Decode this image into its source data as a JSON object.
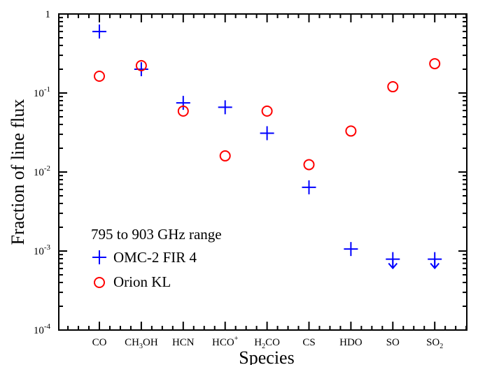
{
  "chart_data": {
    "type": "scatter",
    "xlabel": "Species",
    "ylabel": "Fraction of line flux",
    "yscale": "log",
    "ylim": [
      0.0001,
      1
    ],
    "categories": [
      {
        "label": "CO",
        "base": "CO",
        "sub": "",
        "sup": ""
      },
      {
        "label": "CH3OH",
        "base": "CH",
        "sub": "3",
        "tail": "OH",
        "sup": ""
      },
      {
        "label": "HCN",
        "base": "HCN",
        "sub": "",
        "sup": ""
      },
      {
        "label": "HCO+",
        "base": "HCO",
        "sub": "",
        "sup": "+"
      },
      {
        "label": "H2CO",
        "base": "H",
        "sub": "2",
        "tail": "CO",
        "sup": ""
      },
      {
        "label": "CS",
        "base": "CS",
        "sub": "",
        "sup": ""
      },
      {
        "label": "HDO",
        "base": "HDO",
        "sub": "",
        "sup": ""
      },
      {
        "label": "SO",
        "base": "SO",
        "sub": "",
        "sup": ""
      },
      {
        "label": "SO2",
        "base": "SO",
        "sub": "2",
        "sup": ""
      }
    ],
    "yticks": [
      {
        "value": 1,
        "mant": "1",
        "exp": ""
      },
      {
        "value": 0.1,
        "mant": "10",
        "exp": "-1"
      },
      {
        "value": 0.01,
        "mant": "10",
        "exp": "-2"
      },
      {
        "value": 0.001,
        "mant": "10",
        "exp": "-3"
      },
      {
        "value": 0.0001,
        "mant": "10",
        "exp": "-4"
      }
    ],
    "legend_title": "795 to 903 GHz range",
    "series": [
      {
        "name": "OMC-2 FIR 4",
        "marker": "plus",
        "color": "#0000ff",
        "values": [
          0.6,
          0.2,
          0.075,
          0.066,
          0.031,
          0.0064,
          0.00106,
          0.00079,
          0.00079
        ],
        "upper_limit": [
          false,
          false,
          false,
          false,
          false,
          false,
          false,
          true,
          true
        ]
      },
      {
        "name": "Orion KL",
        "marker": "circle",
        "color": "#ff0000",
        "values": [
          0.163,
          0.222,
          0.059,
          0.016,
          0.059,
          0.0124,
          0.033,
          0.12,
          0.235
        ],
        "upper_limit": [
          false,
          false,
          false,
          false,
          false,
          false,
          false,
          false,
          false
        ]
      }
    ]
  }
}
